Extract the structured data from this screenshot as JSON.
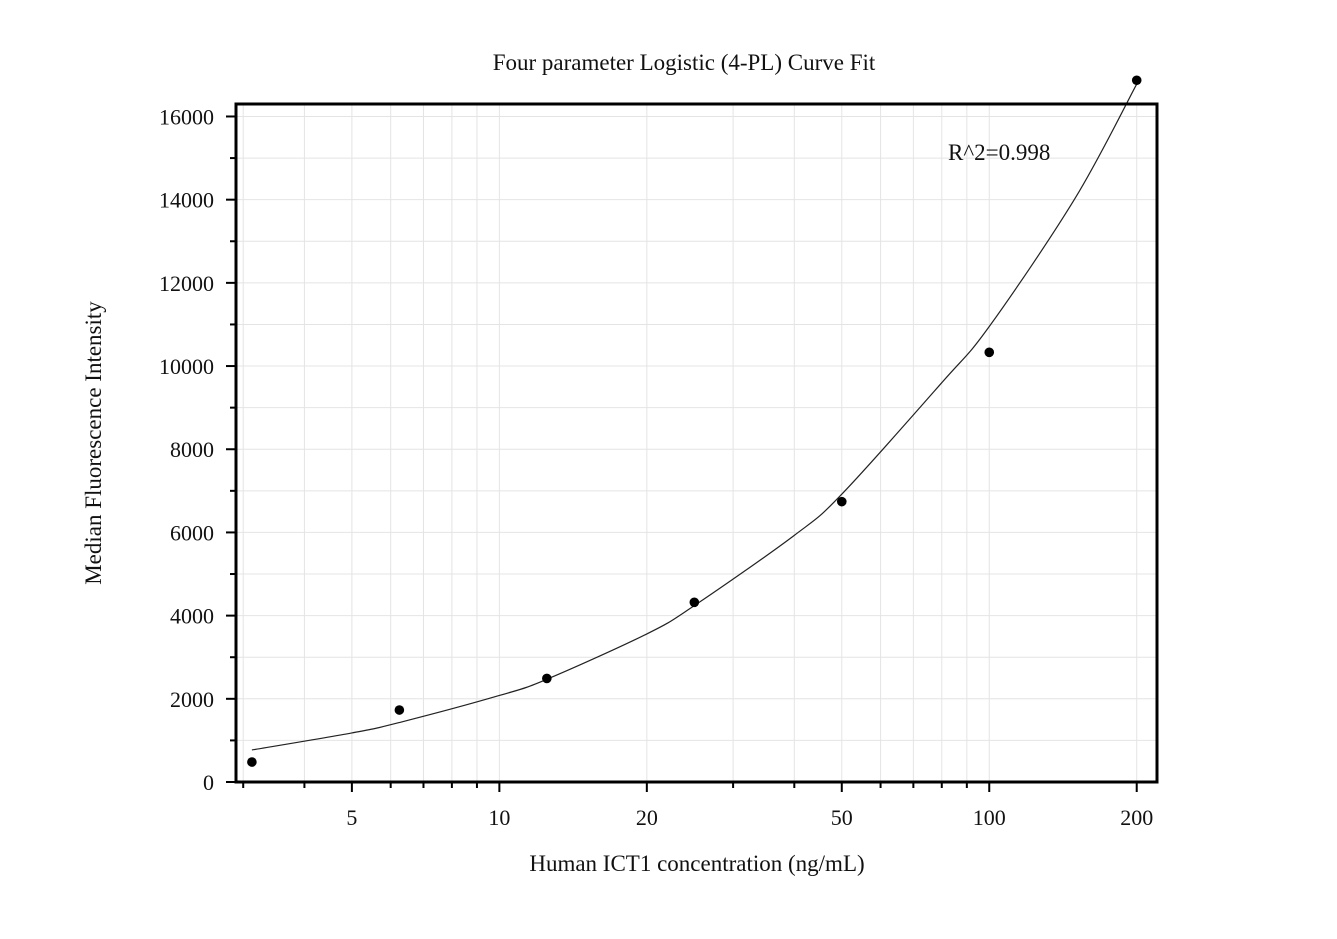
{
  "chart_data": {
    "type": "scatter",
    "title": "Four parameter Logistic (4-PL) Curve Fit",
    "xlabel": "Human ICT1 concentration (ng/mL)",
    "ylabel": "Median Fluorescence Intensity",
    "x_scale": "log",
    "xlim": [
      2.9,
      220
    ],
    "ylim": [
      0,
      16300
    ],
    "x_ticks": [
      5,
      10,
      20,
      50,
      100,
      200
    ],
    "x_tick_labels": [
      "5",
      "10",
      "20",
      "50",
      "100",
      "200"
    ],
    "y_ticks": [
      0,
      2000,
      4000,
      6000,
      8000,
      10000,
      12000,
      14000,
      16000
    ],
    "y_tick_labels": [
      "0",
      "2000",
      "4000",
      "6000",
      "8000",
      "10000",
      "12000",
      "14000",
      "16000"
    ],
    "grid": true,
    "series": [
      {
        "type": "scatter",
        "x": [
          3.125,
          6.25,
          12.5,
          25,
          50,
          100,
          200
        ],
        "y": [
          480,
          1730,
          2490,
          4320,
          6740,
          10330,
          16870
        ]
      },
      {
        "type": "line",
        "x": [
          3.125,
          5,
          6.25,
          10,
          12.5,
          20,
          25,
          40,
          50,
          80,
          100,
          150,
          200
        ],
        "y": [
          770,
          1180,
          1430,
          2080,
          2470,
          3560,
          4240,
          5930,
          6920,
          9600,
          10950,
          14050,
          16780
        ]
      }
    ],
    "annotations": [
      {
        "text": "R^2=0.998"
      }
    ]
  }
}
